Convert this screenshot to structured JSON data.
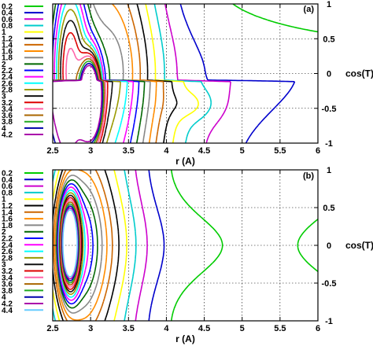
{
  "colors": {
    "0.2": "#00cc00",
    "0.4": "#0000cc",
    "0.6": "#cc00cc",
    "0.8": "#00cccc",
    "1": "#ffff00",
    "1.2": "#000000",
    "1.4": "#cc6600",
    "1.6": "#ff8c00",
    "1.8": "#888888",
    "2": "#006600",
    "2.2": "#0000ff",
    "2.4": "#ff00ff",
    "2.6": "#00ffff",
    "2.8": "#999900",
    "3": "#111111",
    "3.2": "#dd0000",
    "3.4": "#ff66aa",
    "3.6": "#aa6600",
    "3.8": "#22aa22",
    "4": "#0000aa",
    "4.2": "#aa00aa",
    "4.4": "#66ccff"
  },
  "chart_data": [
    {
      "type": "contour",
      "panel_label": "(a)",
      "xlabel": "r (A)",
      "ylabel": "cos(T)",
      "xlim": [
        2.5,
        6
      ],
      "ylim": [
        -1,
        1
      ],
      "xticks": [
        "2.5",
        "3",
        "3.5",
        "4",
        "4.5",
        "5",
        "5.5",
        "6"
      ],
      "yticks": [
        "-1",
        "-0.5",
        "0",
        "0.5",
        "1"
      ],
      "grid": true,
      "legend_position": "left",
      "levels": [
        "0.2",
        "0.4",
        "0.6",
        "0.8",
        "1",
        "1.2",
        "1.4",
        "1.6",
        "1.8",
        "2",
        "2.2",
        "2.4",
        "2.6",
        "2.8",
        "3",
        "3.2",
        "3.4",
        "3.6",
        "3.8",
        "4",
        "4.2"
      ]
    },
    {
      "type": "contour",
      "panel_label": "(b)",
      "xlabel": "r (A)",
      "ylabel": "cos(T)",
      "xlim": [
        2.5,
        6
      ],
      "ylim": [
        -1,
        1
      ],
      "xticks": [
        "2.5",
        "3",
        "3.5",
        "4",
        "4.5",
        "5",
        "5.5",
        "6"
      ],
      "yticks": [
        "-1",
        "-0.5",
        "0",
        "0.5",
        "1"
      ],
      "grid": true,
      "legend_position": "left",
      "levels": [
        "0.2",
        "0.4",
        "0.6",
        "0.8",
        "1",
        "1.2",
        "1.4",
        "1.6",
        "1.8",
        "2",
        "2.2",
        "2.4",
        "2.6",
        "2.8",
        "3",
        "3.2",
        "3.4",
        "3.6",
        "3.8",
        "4",
        "4.2",
        "4.4"
      ]
    }
  ]
}
